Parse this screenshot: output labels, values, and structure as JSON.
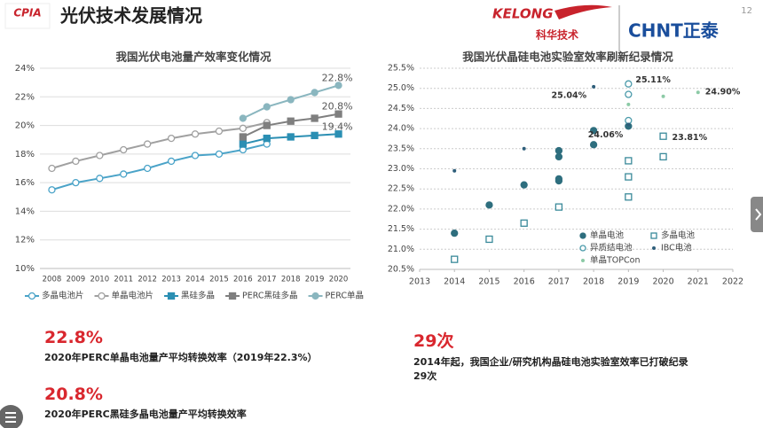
{
  "header": {
    "title": "光伏技术发展情况",
    "logo_left": "CPIA",
    "logo_mid": "KELONG",
    "logo_mid_sub": "科华技术",
    "logo_right": "CHNT正泰",
    "page_number": "12"
  },
  "chart_data": [
    {
      "type": "line",
      "title": "我国光伏电池量产效率变化情况",
      "categories": [
        "2008",
        "2009",
        "2010",
        "2011",
        "2012",
        "2013",
        "2014",
        "2015",
        "2016",
        "2017",
        "2018",
        "2019",
        "2020"
      ],
      "ylim": [
        10,
        24
      ],
      "yticks": [
        {
          "value": 10,
          "label": "10%"
        },
        {
          "value": 12,
          "label": "12%"
        },
        {
          "value": 14,
          "label": "14%"
        },
        {
          "value": 16,
          "label": "16%"
        },
        {
          "value": 18,
          "label": "18%"
        },
        {
          "value": 20,
          "label": "20%"
        },
        {
          "value": 22,
          "label": "22%"
        },
        {
          "value": 24,
          "label": "24%"
        }
      ],
      "grid": true,
      "series": [
        {
          "name": "多晶电池片",
          "color": "#4aa3c8",
          "marker": "circle-open",
          "values": [
            15.5,
            16.0,
            16.3,
            16.6,
            17.0,
            17.5,
            17.9,
            18.0,
            18.3,
            18.7,
            null,
            null,
            null
          ]
        },
        {
          "name": "单晶电池片",
          "color": "#a0a0a0",
          "marker": "circle-open",
          "values": [
            17.0,
            17.5,
            17.9,
            18.3,
            18.7,
            19.1,
            19.4,
            19.6,
            19.8,
            20.2,
            null,
            null,
            null
          ]
        },
        {
          "name": "黑硅多晶",
          "color": "#2b8fb3",
          "marker": "square",
          "values": [
            null,
            null,
            null,
            null,
            null,
            null,
            null,
            null,
            18.7,
            19.1,
            19.2,
            19.3,
            19.4
          ]
        },
        {
          "name": "PERC黑硅多晶",
          "color": "#7f7f7f",
          "marker": "square",
          "values": [
            null,
            null,
            null,
            null,
            null,
            null,
            null,
            null,
            19.2,
            20.0,
            20.3,
            20.5,
            20.8
          ]
        },
        {
          "name": "PERC单晶",
          "color": "#8ab6bf",
          "marker": "circle",
          "values": [
            null,
            null,
            null,
            null,
            null,
            null,
            null,
            null,
            20.5,
            21.3,
            21.8,
            22.3,
            22.8
          ]
        }
      ],
      "annotations": [
        {
          "text": "22.8%",
          "x": "2020",
          "y": 22.8
        },
        {
          "text": "20.8%",
          "x": "2020",
          "y": 20.8
        },
        {
          "text": "19.4%",
          "x": "2020",
          "y": 19.4
        }
      ]
    },
    {
      "type": "scatter",
      "title": "我国光伏晶硅电池实验室效率刷新纪录情况",
      "xlim": [
        2013,
        2022
      ],
      "xticks": [
        2013,
        2014,
        2015,
        2016,
        2017,
        2018,
        2019,
        2020,
        2021,
        2022
      ],
      "ylim": [
        20.5,
        25.5
      ],
      "yticks": [
        {
          "value": 20.5,
          "label": "20.5%"
        },
        {
          "value": 21,
          "label": "21.0%"
        },
        {
          "value": 21.5,
          "label": "21.5%"
        },
        {
          "value": 22,
          "label": "22.0%"
        },
        {
          "value": 22.5,
          "label": "22.5%"
        },
        {
          "value": 23,
          "label": "23.0%"
        },
        {
          "value": 23.5,
          "label": "23.5%"
        },
        {
          "value": 24,
          "label": "24.0%"
        },
        {
          "value": 24.5,
          "label": "24.5%"
        },
        {
          "value": 25,
          "label": "25.0%"
        },
        {
          "value": 25.5,
          "label": "25.5%"
        }
      ],
      "grid": true,
      "series": [
        {
          "name": "单晶电池",
          "color": "#2e6e7e",
          "marker": "circle",
          "x": [
            2014,
            2015,
            2016,
            2017,
            2017,
            2017,
            2017,
            2018,
            2018,
            2019
          ],
          "values": [
            21.4,
            22.1,
            22.6,
            22.7,
            22.75,
            23.3,
            23.45,
            23.6,
            23.95,
            24.06
          ]
        },
        {
          "name": "多晶电池",
          "color": "#3a8a9a",
          "marker": "square-open",
          "x": [
            2014,
            2015,
            2016,
            2017,
            2019,
            2019,
            2019,
            2020,
            2020
          ],
          "values": [
            20.75,
            21.25,
            21.65,
            22.05,
            22.3,
            22.8,
            23.2,
            23.3,
            23.81
          ]
        },
        {
          "name": "异质结电池",
          "color": "#4a9aaa",
          "marker": "circle-open",
          "x": [
            2019,
            2019,
            2019
          ],
          "values": [
            24.2,
            24.85,
            25.11
          ]
        },
        {
          "name": "IBC电池",
          "color": "#2e5e7a",
          "marker": "dot",
          "x": [
            2014,
            2016,
            2018,
            2019
          ],
          "values": [
            22.95,
            23.5,
            25.04,
            24.1
          ]
        },
        {
          "name": "单晶TOPCon",
          "color": "#8ccaa6",
          "marker": "dot",
          "x": [
            2019,
            2020,
            2021
          ],
          "values": [
            24.6,
            24.8,
            24.9
          ]
        }
      ],
      "annotations": [
        {
          "text": "25.04%",
          "x": 2018,
          "y": 25.04
        },
        {
          "text": "25.11%",
          "x": 2019,
          "y": 25.11
        },
        {
          "text": "24.06%",
          "x": 2019,
          "y": 24.06
        },
        {
          "text": "23.81%",
          "x": 2020,
          "y": 23.81
        },
        {
          "text": "24.90%",
          "x": 2021,
          "y": 24.9
        }
      ]
    }
  ],
  "highlights": [
    {
      "figure": "22.8%",
      "caption": "2020年PERC单晶电池量产平均转换效率（2019年22.3%）"
    },
    {
      "figure": "20.8%",
      "caption": "2020年PERC黑硅多晶电池量产平均转换效率"
    },
    {
      "figure": "29次",
      "caption": "2014年起，我国企业/研究机构晶硅电池实验室效率已打破纪录29次"
    }
  ]
}
